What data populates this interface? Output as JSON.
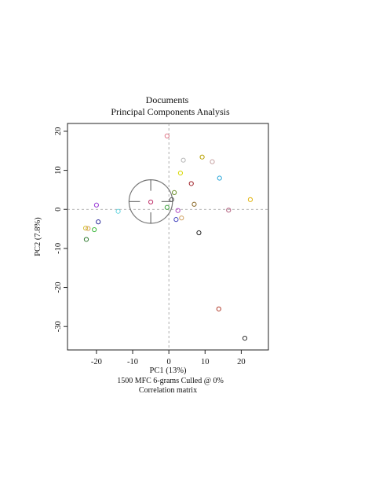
{
  "chart_data": {
    "type": "scatter",
    "title": "Documents",
    "subtitle": "Principal Components Analysis",
    "xlabel": "PC1 (13%)",
    "ylabel": "PC2 (7.8%)",
    "caption_lines": [
      "1500 MFC 6-grams Culled @ 0%",
      "Correlation matrix"
    ],
    "xlim": [
      -28,
      27.5
    ],
    "ylim": [
      -36,
      22
    ],
    "xticks": [
      -20,
      -10,
      0,
      10,
      20
    ],
    "yticks": [
      20,
      10,
      0,
      -10,
      -20,
      -30
    ],
    "xtick_labels": [
      "-20",
      "-10",
      "0",
      "10",
      "20"
    ],
    "ytick_labels": [
      "20",
      "10",
      "0",
      "-10",
      "-20",
      "-30"
    ],
    "grid": false,
    "zero_lines": true,
    "centroid_circle": {
      "x": -5,
      "y": 2,
      "radius_x_units": 6
    },
    "points": [
      {
        "x": -0.5,
        "y": 18.8,
        "color": "#e07a8a"
      },
      {
        "x": 4,
        "y": 12.6,
        "color": "#b8b8b8"
      },
      {
        "x": 9.2,
        "y": 13.4,
        "color": "#b8a000"
      },
      {
        "x": 12,
        "y": 12.2,
        "color": "#c7a4a4"
      },
      {
        "x": 3.2,
        "y": 9.3,
        "color": "#d8d800"
      },
      {
        "x": 14,
        "y": 8,
        "color": "#29a6d9"
      },
      {
        "x": 6.2,
        "y": 6.6,
        "color": "#a0222a"
      },
      {
        "x": 1.5,
        "y": 4.3,
        "color": "#6a8e2a"
      },
      {
        "x": 0.8,
        "y": 2.5,
        "color": "#555555"
      },
      {
        "x": -5,
        "y": 1.9,
        "color": "#c0306a"
      },
      {
        "x": -20,
        "y": 1.1,
        "color": "#9a3ad6"
      },
      {
        "x": 7,
        "y": 1.3,
        "color": "#8b6a2a"
      },
      {
        "x": -0.5,
        "y": 0.5,
        "color": "#3aa03a"
      },
      {
        "x": -14,
        "y": -0.5,
        "color": "#6ad6e0"
      },
      {
        "x": 2.5,
        "y": -0.3,
        "color": "#b044c0"
      },
      {
        "x": 16.5,
        "y": -0.2,
        "color": "#b05a7a"
      },
      {
        "x": 3.5,
        "y": -2.2,
        "color": "#cfa060"
      },
      {
        "x": 2,
        "y": -2.6,
        "color": "#4a4ac0"
      },
      {
        "x": -19.5,
        "y": -3.2,
        "color": "#2a2a9a"
      },
      {
        "x": -23,
        "y": -4.8,
        "color": "#d6c23a"
      },
      {
        "x": -22.3,
        "y": -4.9,
        "color": "#d6a05a"
      },
      {
        "x": -20.6,
        "y": -5.2,
        "color": "#3ab83a"
      },
      {
        "x": 8.3,
        "y": -6,
        "color": "#222222"
      },
      {
        "x": -22.8,
        "y": -7.7,
        "color": "#2f7a2f"
      },
      {
        "x": 22.5,
        "y": 2.5,
        "color": "#e0b000"
      },
      {
        "x": 13.8,
        "y": -25.5,
        "color": "#b03a2a"
      },
      {
        "x": 21,
        "y": -33,
        "color": "#333333"
      }
    ]
  }
}
